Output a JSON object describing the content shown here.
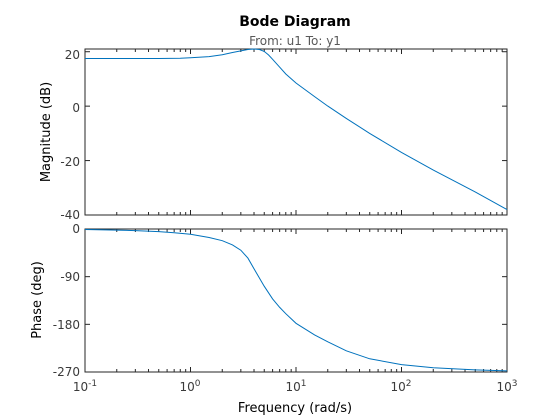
{
  "chart_data": [
    {
      "type": "line",
      "title": "Bode Diagram",
      "subtitle": "From: u1  To: y1",
      "xlabel": "",
      "ylabel": "Magnitude (dB)",
      "xscale": "log",
      "xlim": [
        0.1,
        1000
      ],
      "ylim": [
        -40,
        21
      ],
      "yticks": [
        -40,
        -20,
        0,
        20
      ],
      "grid": false,
      "color": "#0072bd",
      "series": [
        {
          "x": [
            0.1,
            0.2,
            0.5,
            0.8,
            1.0,
            1.5,
            2.0,
            2.5,
            3.0,
            3.5,
            4.0,
            4.5,
            5.0,
            5.5,
            6.0,
            7.0,
            8.0,
            10,
            15,
            20,
            30,
            50,
            100,
            200,
            500,
            1000
          ],
          "y": [
            17.5,
            17.5,
            17.5,
            17.6,
            17.8,
            18.2,
            18.9,
            19.7,
            20.3,
            20.8,
            21.0,
            20.8,
            20.1,
            18.8,
            17.2,
            14.3,
            11.8,
            8.5,
            3.5,
            0.0,
            -4.5,
            -10.0,
            -17.0,
            -23.5,
            -31.5,
            -38.0
          ]
        }
      ]
    },
    {
      "type": "line",
      "title": "",
      "xlabel": "Frequency  (rad/s)",
      "ylabel": "Phase (deg)",
      "xscale": "log",
      "xlim": [
        0.1,
        1000
      ],
      "ylim": [
        -270,
        0
      ],
      "xticks": [
        0.1,
        1,
        10,
        100,
        1000
      ],
      "yticks": [
        -270,
        -180,
        -90,
        0
      ],
      "grid": false,
      "color": "#0072bd",
      "series": [
        {
          "x": [
            0.1,
            0.2,
            0.3,
            0.5,
            0.7,
            1.0,
            1.5,
            2.0,
            2.5,
            3.0,
            3.5,
            4.0,
            5.0,
            6.0,
            7.0,
            8.0,
            10,
            15,
            20,
            30,
            50,
            100,
            200,
            500,
            1000
          ],
          "y": [
            -1,
            -2,
            -3,
            -5,
            -7,
            -10,
            -16,
            -22,
            -30,
            -40,
            -55,
            -75,
            -108,
            -132,
            -148,
            -160,
            -178,
            -200,
            -213,
            -230,
            -245,
            -256,
            -262,
            -266,
            -268
          ]
        }
      ]
    }
  ],
  "tick_labels": {
    "mag_y": [
      "20",
      "0",
      "-20",
      "-40"
    ],
    "phase_y": [
      "0",
      "-90",
      "-180",
      "-270"
    ],
    "x_mantissa": [
      "10",
      "10",
      "10",
      "10",
      "10"
    ],
    "x_exponent": [
      "-1",
      "0",
      "1",
      "2",
      "3"
    ]
  }
}
